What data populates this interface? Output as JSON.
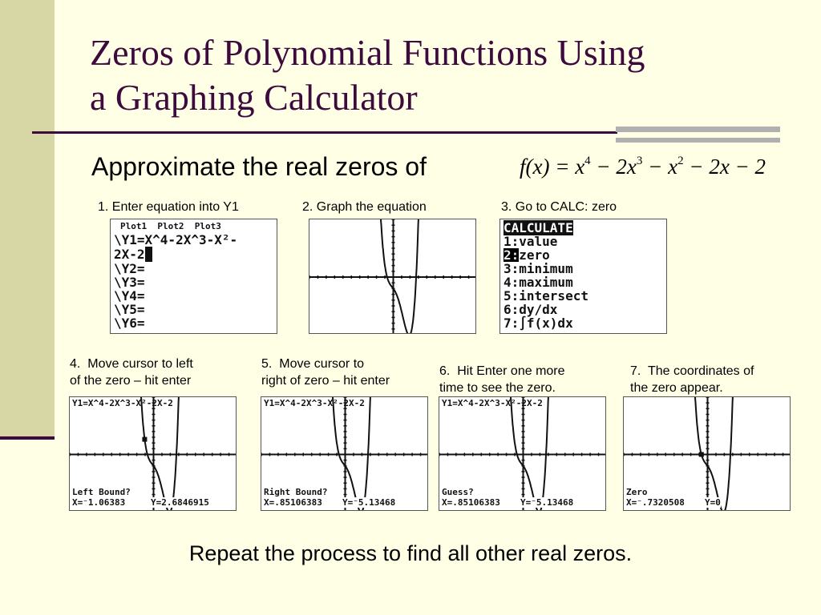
{
  "slide": {
    "title_line1": "Zeros of Polynomial Functions Using",
    "title_line2": "a Graphing Calculator",
    "subtitle": "Approximate the real zeros of",
    "equation": {
      "lhs": "f(x) =",
      "terms": [
        "x",
        "4",
        "− 2x",
        "3",
        "− x",
        "2",
        "− 2x − 2"
      ]
    },
    "footer": "Repeat the process to find all other real zeros."
  },
  "steps": [
    "1.  Enter equation into Y1",
    "2.  Graph the equation",
    "3.  Go to CALC: zero",
    "4.  Move cursor to left\nof the zero – hit enter",
    "5.  Move cursor to\nright of zero – hit enter",
    "6.  Hit Enter one more\ntime to see the zero.",
    "7.  The coordinates of\nthe zero appear."
  ],
  "screens": {
    "y_editor": {
      "plots": "Plot1  Plot2  Plot3",
      "y1": "\\Y1=X^4-2X^3-X²-",
      "y1_cont": "2X-2",
      "rest": [
        "\\Y2=",
        "\\Y3=",
        "\\Y4=",
        "\\Y5=",
        "\\Y6="
      ]
    },
    "calc_menu": {
      "header": "CALCULATE",
      "items": [
        "1:value",
        "2:zero",
        "3:minimum",
        "4:maximum",
        "5:intersect",
        "6:dy/dx",
        "7:∫f(x)dx"
      ],
      "selected": 1
    },
    "graph_header": "Y1=X^4-2X^3-X²-2X-2",
    "left_bound": {
      "prompt": "Left Bound?",
      "x": "X=⁻1.06383",
      "y": "Y=2.6846915"
    },
    "right_bound": {
      "prompt": "Right Bound?",
      "x": "X=.85106383",
      "y": "Y=⁻5.13468"
    },
    "guess": {
      "prompt": "Guess?",
      "x": "X=.85106383",
      "y": "Y=⁻5.13468"
    },
    "zero": {
      "prompt": "Zero",
      "x": "X=⁻.7320508",
      "y": "Y=0"
    }
  },
  "colors": {
    "title": "#3D0A3E",
    "background": "#FFFFE5",
    "sidebar": "#D7D7A6"
  }
}
